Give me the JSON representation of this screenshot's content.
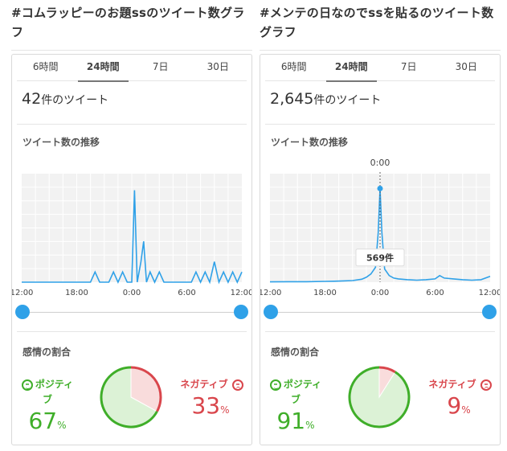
{
  "panels": [
    {
      "title": "#コムラッピーのお題ssのツイート数グラフ",
      "tabs": [
        "6時間",
        "24時間",
        "7日",
        "30日"
      ],
      "active_tab": 1,
      "count_value": "42",
      "count_unit": "件のツイート",
      "trend_label": "ツイート数の推移",
      "sentiment_label": "感情の割合",
      "positive_label": "ポジティブ",
      "negative_label": "ネガティブ",
      "positive_pct": "67",
      "negative_pct": "33",
      "pct_unit": "%",
      "colors": {
        "positive": "#3fae29",
        "negative": "#d9464c",
        "line": "#2fa1e8"
      }
    },
    {
      "title": "#メンテの日なのでssを貼るのツイート数グラフ",
      "tabs": [
        "6時間",
        "24時間",
        "7日",
        "30日"
      ],
      "active_tab": 1,
      "count_value": "2,645",
      "count_unit": "件のツイート",
      "trend_label": "ツイート数の推移",
      "sentiment_label": "感情の割合",
      "positive_label": "ポジティブ",
      "negative_label": "ネガティブ",
      "positive_pct": "91",
      "negative_pct": "9",
      "pct_unit": "%",
      "tooltip_time": "0:00",
      "tooltip_value": "569件",
      "colors": {
        "positive": "#3fae29",
        "negative": "#d9464c",
        "line": "#2fa1e8"
      }
    }
  ],
  "chart_data": [
    {
      "type": "line",
      "x_ticks": [
        "12:00",
        "18:00",
        "0:00",
        "6:00",
        "12:00"
      ],
      "x": [
        12,
        13,
        14,
        15,
        16,
        17,
        18,
        19,
        19.5,
        20,
        20.5,
        21,
        21.5,
        22,
        22.5,
        23,
        23.5,
        24,
        24.3,
        24.6,
        25,
        25.3,
        25.6,
        26,
        26.5,
        27,
        27.5,
        28,
        28.5,
        29,
        29.5,
        30,
        30.5,
        31,
        31.5,
        32,
        32.5,
        33,
        33.5,
        34,
        34.5,
        35,
        35.5,
        36
      ],
      "y": [
        0,
        0,
        0,
        0,
        0,
        0,
        0,
        0,
        0,
        1,
        0,
        0,
        0,
        1,
        0,
        1,
        0,
        0,
        9,
        0,
        2,
        4,
        0,
        1,
        0,
        1,
        0,
        0,
        0,
        0,
        0,
        0,
        0,
        1,
        0,
        1,
        0,
        2,
        0,
        1,
        0,
        1,
        0,
        1
      ],
      "ylim": [
        0,
        10
      ],
      "grid": true
    },
    {
      "type": "line",
      "x_ticks": [
        "12:00",
        "18:00",
        "0:00",
        "6:00",
        "12:00"
      ],
      "x": [
        12,
        14,
        16,
        18,
        19,
        20,
        21,
        22,
        22.5,
        23,
        23.5,
        23.8,
        24,
        24.2,
        24.5,
        25,
        25.5,
        26,
        27,
        28,
        29,
        30,
        30.5,
        31,
        32,
        33,
        34,
        35,
        36
      ],
      "y": [
        2,
        3,
        3,
        5,
        6,
        8,
        10,
        18,
        30,
        50,
        90,
        300,
        569,
        300,
        80,
        40,
        25,
        20,
        15,
        12,
        15,
        20,
        40,
        25,
        20,
        15,
        12,
        15,
        35
      ],
      "ylim": [
        0,
        620
      ],
      "grid": true
    }
  ]
}
